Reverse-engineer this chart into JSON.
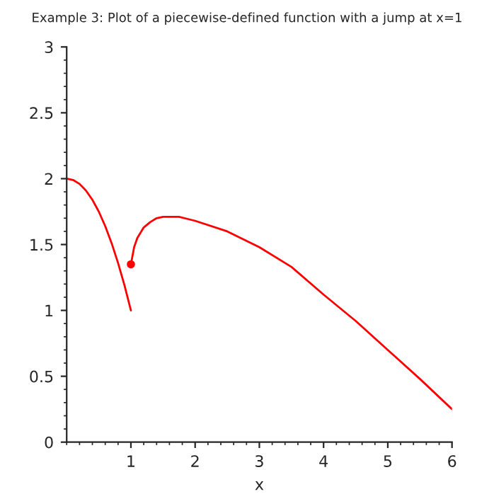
{
  "chart_data": {
    "type": "line",
    "title": "Example 3: Plot of a piecewise-defined function with a jump at x=1",
    "xlabel": "x",
    "xlim": [
      0,
      6
    ],
    "ylim": [
      0,
      3
    ],
    "xticks": [
      1,
      2,
      3,
      4,
      5,
      6
    ],
    "yticks": [
      0,
      0.5,
      1,
      1.5,
      2,
      2.5,
      3
    ],
    "grid": false,
    "legend": false,
    "series": [
      {
        "color": "#ff0000",
        "x": [
          0,
          0.1,
          0.2,
          0.3,
          0.4,
          0.5,
          0.6,
          0.7,
          0.8,
          0.9,
          1
        ],
        "values": [
          2,
          1.99,
          1.96,
          1.91,
          1.84,
          1.75,
          1.64,
          1.51,
          1.36,
          1.19,
          1
        ]
      },
      {
        "color": "#ff0000",
        "x": [
          1,
          1.05,
          1.1,
          1.2,
          1.3,
          1.4,
          1.5,
          1.75,
          2,
          2.5,
          3,
          3.5,
          4,
          4.5,
          5,
          5.5,
          6
        ],
        "values": [
          1.35,
          1.48,
          1.55,
          1.63,
          1.67,
          1.7,
          1.71,
          1.71,
          1.68,
          1.6,
          1.48,
          1.33,
          1.12,
          0.92,
          0.7,
          0.48,
          0.25
        ]
      },
      {
        "type": "scatter",
        "marker": "circle",
        "color": "#ff0000",
        "x": [
          1
        ],
        "values": [
          1.35
        ]
      }
    ]
  }
}
